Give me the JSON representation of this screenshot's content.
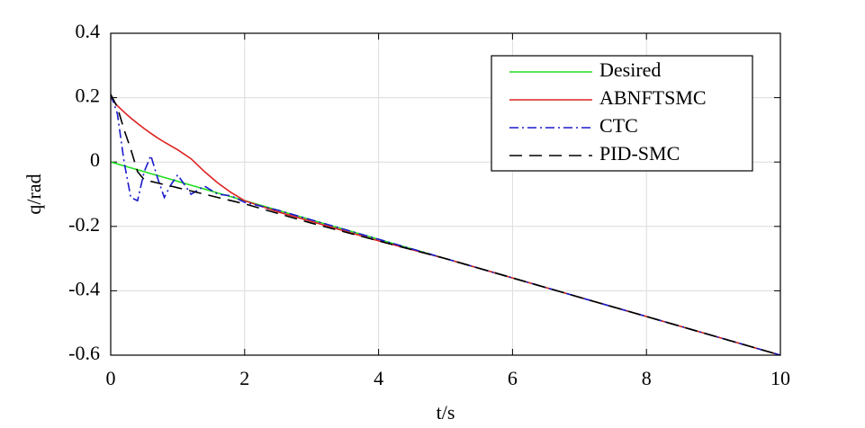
{
  "chart_data": {
    "type": "line",
    "x_label": "t/s",
    "y_label": "q/rad",
    "x": [
      0,
      0.1,
      0.2,
      0.3,
      0.4,
      0.5,
      0.6,
      0.7,
      0.8,
      0.9,
      1,
      1.2,
      1.4,
      1.6,
      1.8,
      2,
      2.5,
      3,
      4,
      5,
      6,
      7,
      8,
      9,
      10
    ],
    "series": [
      {
        "name": "Desired",
        "color": "#22dd22",
        "dash": "solid",
        "values": [
          0,
          -0.006,
          -0.012,
          -0.018,
          -0.024,
          -0.03,
          -0.036,
          -0.042,
          -0.048,
          -0.054,
          -0.06,
          -0.072,
          -0.084,
          -0.096,
          -0.108,
          -0.12,
          -0.15,
          -0.18,
          -0.24,
          -0.3,
          -0.36,
          -0.42,
          -0.48,
          -0.54,
          -0.6
        ]
      },
      {
        "name": "ABNFTSMC",
        "color": "#dd2222",
        "dash": "solid",
        "values": [
          0.2,
          0.175,
          0.155,
          0.137,
          0.12,
          0.104,
          0.089,
          0.075,
          0.062,
          0.05,
          0.038,
          0.01,
          -0.03,
          -0.065,
          -0.095,
          -0.12,
          -0.155,
          -0.185,
          -0.245,
          -0.3,
          -0.36,
          -0.42,
          -0.48,
          -0.54,
          -0.6
        ]
      },
      {
        "name": "CTC",
        "color": "#1a1acc",
        "dash": "dashdot",
        "values": [
          0.21,
          0.15,
          0,
          -0.11,
          -0.12,
          -0.03,
          0.02,
          -0.05,
          -0.11,
          -0.07,
          -0.04,
          -0.1,
          -0.075,
          -0.1,
          -0.105,
          -0.125,
          -0.15,
          -0.18,
          -0.24,
          -0.3,
          -0.36,
          -0.42,
          -0.48,
          -0.54,
          -0.6
        ]
      },
      {
        "name": "PID-SMC",
        "color": "#000000",
        "dash": "dashed",
        "values": [
          0.21,
          0.17,
          0.1,
          0.04,
          -0.03,
          -0.055,
          -0.06,
          -0.065,
          -0.07,
          -0.075,
          -0.08,
          -0.09,
          -0.1,
          -0.11,
          -0.12,
          -0.13,
          -0.16,
          -0.19,
          -0.245,
          -0.3,
          -0.36,
          -0.42,
          -0.48,
          -0.54,
          -0.6
        ]
      }
    ],
    "xlim": [
      0,
      10
    ],
    "xticks": [
      0,
      2,
      4,
      6,
      8,
      10
    ],
    "ylim": [
      -0.6,
      0.4
    ],
    "yticks": [
      -0.6,
      -0.4,
      -0.2,
      0,
      0.2,
      0.4
    ],
    "grid": true,
    "legend": "upper right"
  }
}
